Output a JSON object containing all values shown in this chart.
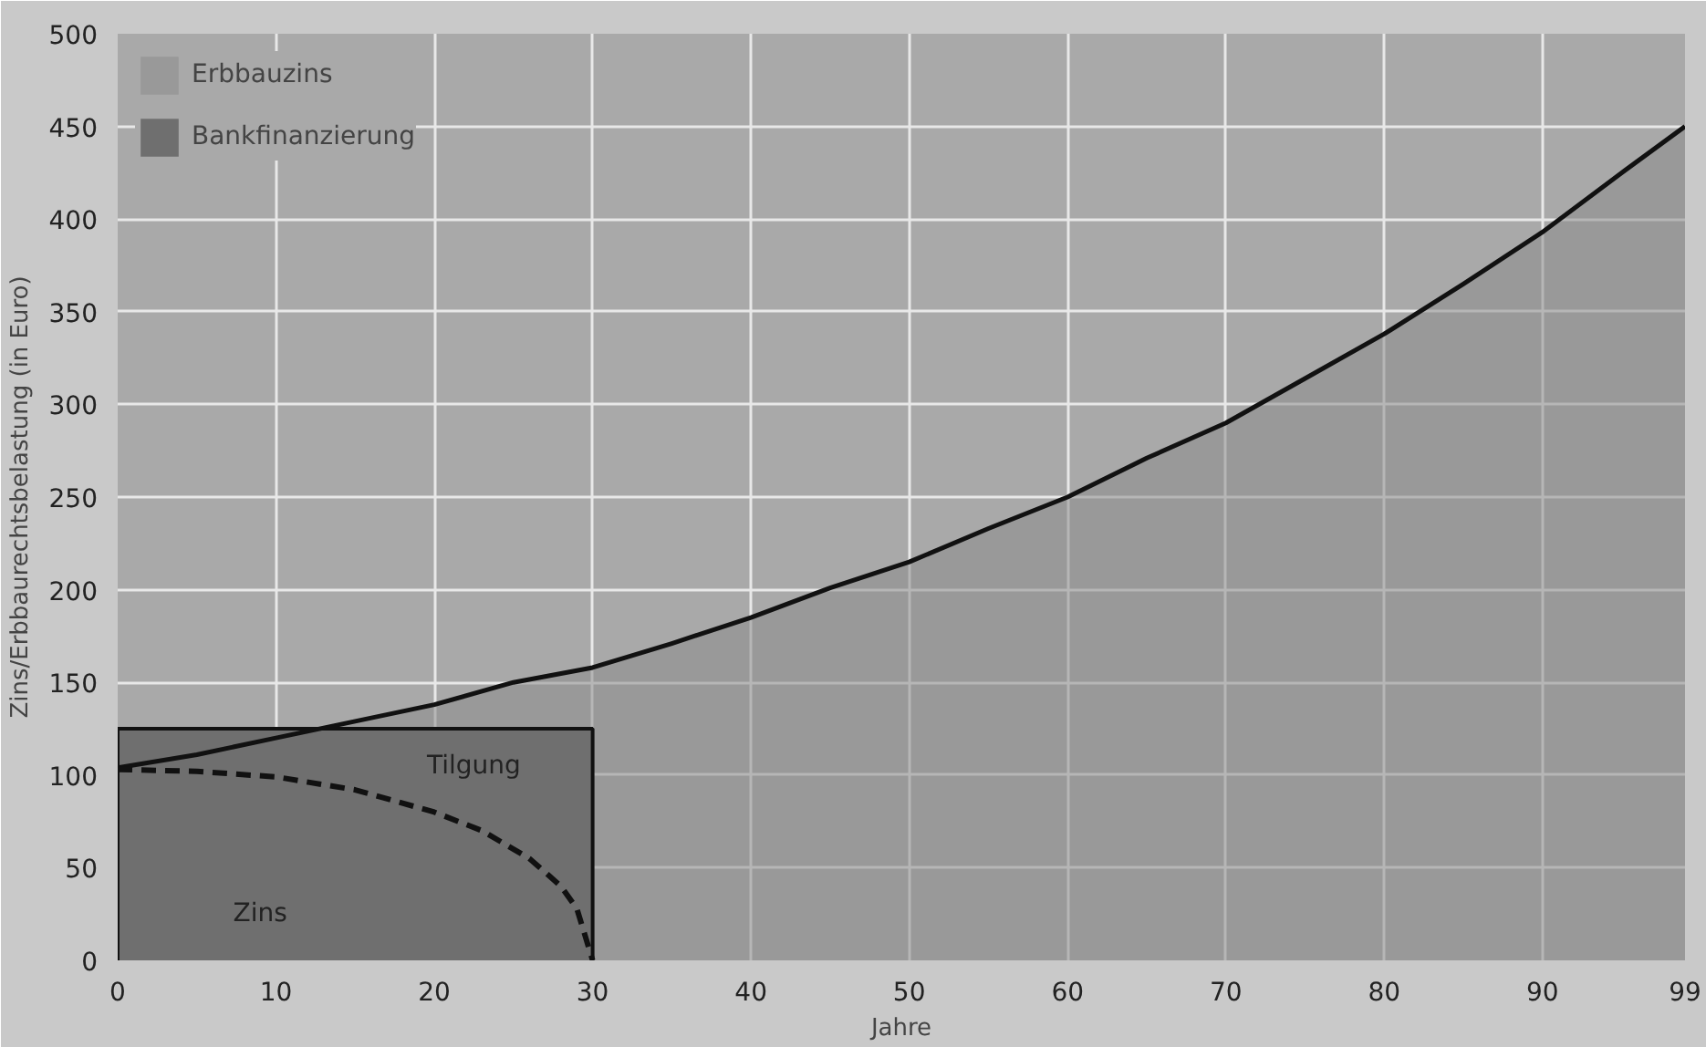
{
  "chart_data": {
    "type": "area",
    "xlabel": "Jahre",
    "ylabel": "Zins/Erbbaurechtsbelastung (in Euro)",
    "xlim": [
      0,
      99
    ],
    "xticks": [
      0,
      10,
      20,
      30,
      40,
      50,
      60,
      70,
      80,
      90,
      99
    ],
    "ylim": [
      0,
      500
    ],
    "yticks": [
      0,
      50,
      100,
      150,
      200,
      250,
      300,
      350,
      400,
      450,
      500
    ],
    "grid": true,
    "legend": "top left",
    "series": [
      {
        "name": "Erbbauzins",
        "color": "#8c8c8c",
        "line_style": "solid",
        "x": [
          0,
          5,
          10,
          15,
          20,
          25,
          30,
          35,
          40,
          45,
          50,
          55,
          60,
          65,
          70,
          75,
          80,
          85,
          90,
          95,
          99
        ],
        "values": [
          104,
          111,
          120,
          129,
          138,
          150,
          158,
          171,
          185,
          201,
          215,
          233,
          250,
          271,
          290,
          314,
          338,
          365,
          393,
          425,
          450
        ]
      },
      {
        "name": "Bankfinanzierung",
        "color": "#6f6f6f",
        "line_style": "solid",
        "x": [
          0,
          30
        ],
        "values": [
          125,
          125
        ]
      },
      {
        "type": "line",
        "color": "#111111",
        "line_style": "dashed",
        "x": [
          0,
          5,
          10,
          15,
          20,
          23,
          26,
          28,
          29,
          30
        ],
        "values": [
          103,
          102,
          99,
          92,
          80,
          70,
          55,
          40,
          28,
          0
        ]
      }
    ],
    "annotations": [
      "Tilgung",
      "Zins"
    ]
  }
}
